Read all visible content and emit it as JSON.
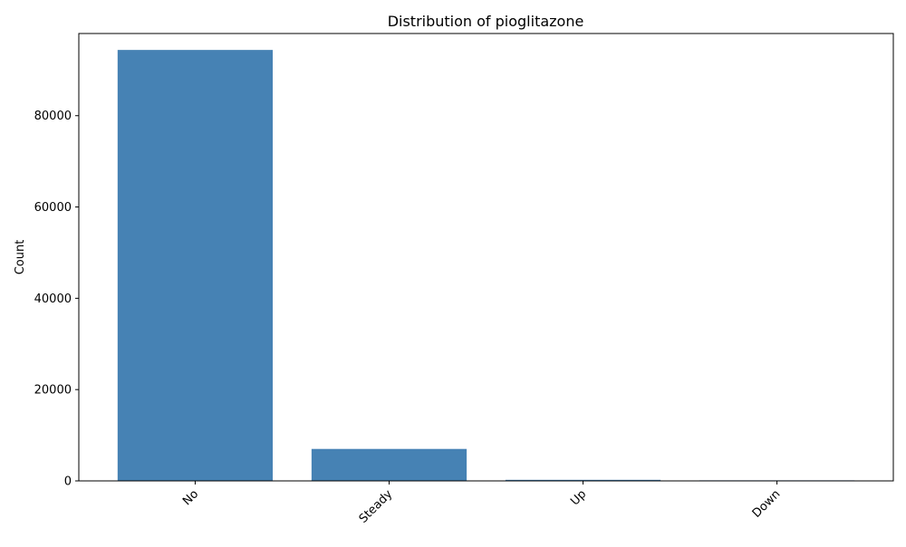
{
  "chart_data": {
    "type": "bar",
    "title": "Distribution of pioglitazone",
    "xlabel": "",
    "ylabel": "Count",
    "categories": [
      "No",
      "Steady",
      "Up",
      "Down"
    ],
    "values": [
      94400,
      7000,
      230,
      120
    ],
    "ylim": [
      0,
      98000
    ],
    "yticks": [
      0,
      20000,
      40000,
      60000,
      80000
    ],
    "ytick_labels": [
      "0",
      "20000",
      "40000",
      "60000",
      "80000"
    ],
    "grid": false,
    "bar_color": "#4682b4",
    "x_tick_rotation_deg": 45
  }
}
